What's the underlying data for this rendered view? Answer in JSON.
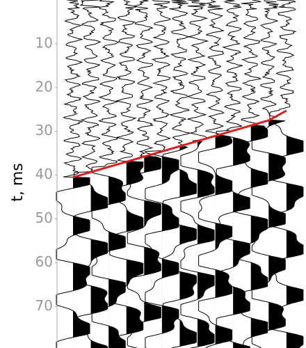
{
  "chart_data": {
    "type": "wiggle",
    "ylabel": "t, ms",
    "ylim": [
      0,
      79.5
    ],
    "yticks": [
      10,
      20,
      30,
      40,
      50,
      60,
      70
    ],
    "xlim": [
      -0.9,
      13.1
    ],
    "trace_count": 13,
    "series": [
      {
        "color": "#e41a1c",
        "x": [
          0,
          11,
          12
        ],
        "values": [
          40.5,
          27.5,
          25.3
        ]
      }
    ]
  }
}
